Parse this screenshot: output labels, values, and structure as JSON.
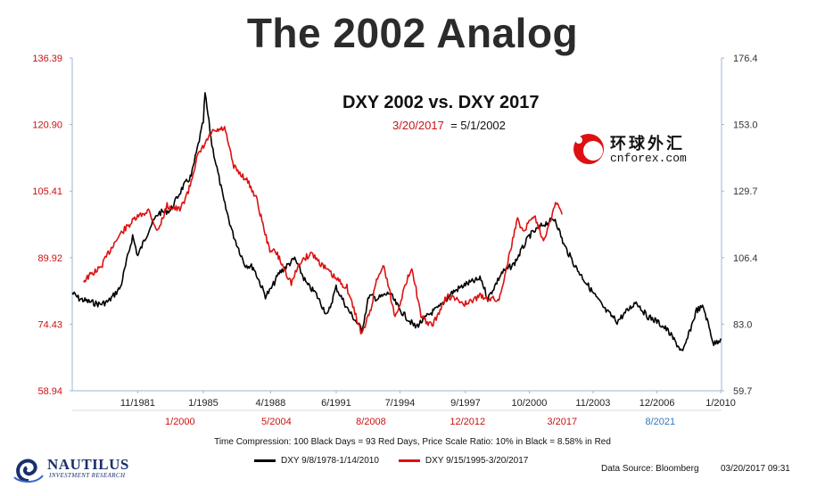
{
  "header": {
    "title": "The 2002 Analog"
  },
  "annotation": {
    "subtitle": "DXY 2002 vs. DXY 2017",
    "date_red": "3/20/2017",
    "date_rest": "= 5/1/2002"
  },
  "watermark": {
    "cn_text": "环球外汇",
    "url": "cnforex.com"
  },
  "footer": {
    "caption": "Time Compression: 100 Black Days = 93 Red Days,  Price Scale Ratio: 10% in Black = 8.58% in Red",
    "source": "Data Source: Bloomberg",
    "timestamp": "03/20/2017 09:31",
    "brand_name": "NAUTILUS",
    "brand_sub": "INVESTMENT RESEARCH"
  },
  "colors": {
    "black_series": "#000000",
    "red_series": "#dd1111",
    "left_axis": "#cc1111",
    "right_axis": "#333333",
    "blue_tick": "#3377bb"
  },
  "chart_data": {
    "type": "line",
    "left_axis": {
      "ticks": [
        "136.39",
        "120.90",
        "105.41",
        "89.92",
        "74.43",
        "58.94"
      ],
      "ylim": [
        58.94,
        136.39
      ]
    },
    "right_axis": {
      "ticks": [
        "176.4",
        "153.0",
        "129.7",
        "106.4",
        "83.0",
        "59.7"
      ],
      "ylim": [
        59.7,
        176.4
      ]
    },
    "x_top_ticks": [
      "11/1981",
      "1/1985",
      "4/1988",
      "6/1991",
      "7/1994",
      "9/1997",
      "10/2000",
      "11/2003",
      "12/2006",
      "1/2010"
    ],
    "x_bottom_ticks": [
      "1/2000",
      "5/2004",
      "8/2008",
      "12/2012",
      "3/2017",
      "8/2021"
    ],
    "series": [
      {
        "name": "DXY 9/8/1978-1/14/2010",
        "axis": "right",
        "points": [
          [
            "9/1978",
            94
          ],
          [
            "1/1979",
            92
          ],
          [
            "6/1979",
            91
          ],
          [
            "1/1980",
            90
          ],
          [
            "6/1980",
            91
          ],
          [
            "1/1981",
            96
          ],
          [
            "8/1981",
            114
          ],
          [
            "11/1981",
            107
          ],
          [
            "6/1982",
            117
          ],
          [
            "11/1982",
            122
          ],
          [
            "6/1983",
            123
          ],
          [
            "1/1984",
            131
          ],
          [
            "6/1984",
            135
          ],
          [
            "1/1985",
            154
          ],
          [
            "2/1985",
            164
          ],
          [
            "6/1985",
            146
          ],
          [
            "1/1986",
            126
          ],
          [
            "6/1986",
            115
          ],
          [
            "1/1987",
            104
          ],
          [
            "6/1987",
            103
          ],
          [
            "1/1988",
            93
          ],
          [
            "4/1988",
            95
          ],
          [
            "9/1988",
            101
          ],
          [
            "6/1989",
            106
          ],
          [
            "1/1990",
            97
          ],
          [
            "6/1990",
            94
          ],
          [
            "1/1991",
            86
          ],
          [
            "6/1991",
            96
          ],
          [
            "1/1992",
            88
          ],
          [
            "9/1992",
            81
          ],
          [
            "1/1993",
            93
          ],
          [
            "6/1993",
            92
          ],
          [
            "1/1994",
            94
          ],
          [
            "7/1994",
            88
          ],
          [
            "4/1995",
            82
          ],
          [
            "1/1996",
            87
          ],
          [
            "6/1996",
            89
          ],
          [
            "1/1997",
            94
          ],
          [
            "9/1997",
            97
          ],
          [
            "6/1998",
            99
          ],
          [
            "10/1998",
            92
          ],
          [
            "6/1999",
            101
          ],
          [
            "1/2000",
            104
          ],
          [
            "10/2000",
            114
          ],
          [
            "6/2001",
            118
          ],
          [
            "1/2002",
            120
          ],
          [
            "6/2002",
            111
          ],
          [
            "1/2003",
            103
          ],
          [
            "11/2003",
            94
          ],
          [
            "6/2004",
            88
          ],
          [
            "1/2005",
            84
          ],
          [
            "12/2005",
            91
          ],
          [
            "6/2006",
            86
          ],
          [
            "12/2006",
            84
          ],
          [
            "6/2007",
            81
          ],
          [
            "3/2008",
            73
          ],
          [
            "11/2008",
            88
          ],
          [
            "3/2009",
            89
          ],
          [
            "9/2009",
            76
          ],
          [
            "1/2010",
            78
          ]
        ]
      },
      {
        "name": "DXY 9/15/1995-3/20/2017",
        "axis": "left",
        "points": [
          [
            "9/1995",
            84.5
          ],
          [
            "1/1996",
            86
          ],
          [
            "6/1996",
            87.5
          ],
          [
            "1/1997",
            93
          ],
          [
            "6/1997",
            96
          ],
          [
            "1/1998",
            99
          ],
          [
            "8/1998",
            101
          ],
          [
            "1/1999",
            96
          ],
          [
            "6/1999",
            102
          ],
          [
            "1/2000",
            101
          ],
          [
            "6/2000",
            106
          ],
          [
            "10/2000",
            113
          ],
          [
            "6/2001",
            119
          ],
          [
            "1/2002",
            120
          ],
          [
            "6/2002",
            111
          ],
          [
            "1/2003",
            108
          ],
          [
            "6/2003",
            104
          ],
          [
            "1/2004",
            92
          ],
          [
            "5/2004",
            91
          ],
          [
            "1/2005",
            84
          ],
          [
            "6/2005",
            89
          ],
          [
            "12/2005",
            91
          ],
          [
            "6/2006",
            88
          ],
          [
            "1/2007",
            85
          ],
          [
            "7/2007",
            83
          ],
          [
            "3/2008",
            72
          ],
          [
            "8/2008",
            78
          ],
          [
            "11/2008",
            85
          ],
          [
            "3/2009",
            88
          ],
          [
            "9/2009",
            76
          ],
          [
            "6/2010",
            88
          ],
          [
            "11/2010",
            76
          ],
          [
            "5/2011",
            74
          ],
          [
            "1/2012",
            81
          ],
          [
            "12/2012",
            79
          ],
          [
            "6/2013",
            81
          ],
          [
            "5/2014",
            80
          ],
          [
            "3/2015",
            99
          ],
          [
            "6/2015",
            96
          ],
          [
            "12/2015",
            100
          ],
          [
            "5/2016",
            94
          ],
          [
            "12/2016",
            103
          ],
          [
            "3/2017",
            100
          ]
        ]
      }
    ],
    "legend": "bottom"
  }
}
